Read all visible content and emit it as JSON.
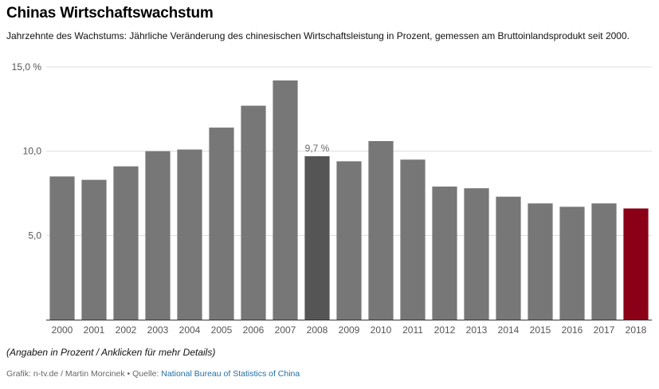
{
  "header": {
    "title": "Chinas Wirtschaftswachstum",
    "subtitle": "Jahrzehnte des Wachstums: Jährliche Veränderung des chinesischen Wirtschaftsleistung in Prozent, gemessen am Bruttoinlandsprodukt seit 2000."
  },
  "footer": {
    "note": "(Angaben in Prozent / Anklicken für mehr Details)",
    "credit_prefix": "Grafik: n-tv.de / Martin Morcinek • Quelle: ",
    "source_link": "National Bureau of Statistics of China"
  },
  "colors": {
    "bar": "#777777",
    "highlight": "#555555",
    "latest": "#8b0016",
    "grid": "#dddddd",
    "axis": "#333333"
  },
  "chart_data": {
    "type": "bar",
    "categories": [
      "2000",
      "2001",
      "2002",
      "2003",
      "2004",
      "2005",
      "2006",
      "2007",
      "2008",
      "2009",
      "2010",
      "2011",
      "2012",
      "2013",
      "2014",
      "2015",
      "2016",
      "2017",
      "2018"
    ],
    "values": [
      8.5,
      8.3,
      9.1,
      10.0,
      10.1,
      11.4,
      12.7,
      14.2,
      9.7,
      9.4,
      10.6,
      9.5,
      7.9,
      7.8,
      7.3,
      6.9,
      6.7,
      6.9,
      6.6
    ],
    "ylim": [
      0,
      15
    ],
    "yticks": [
      5,
      10,
      15
    ],
    "ytick_labels": [
      "5,0",
      "10,0",
      "15,0 %"
    ],
    "highlight_index": 8,
    "highlight_label": "9,7 %",
    "latest_index": 18,
    "grid": true
  }
}
